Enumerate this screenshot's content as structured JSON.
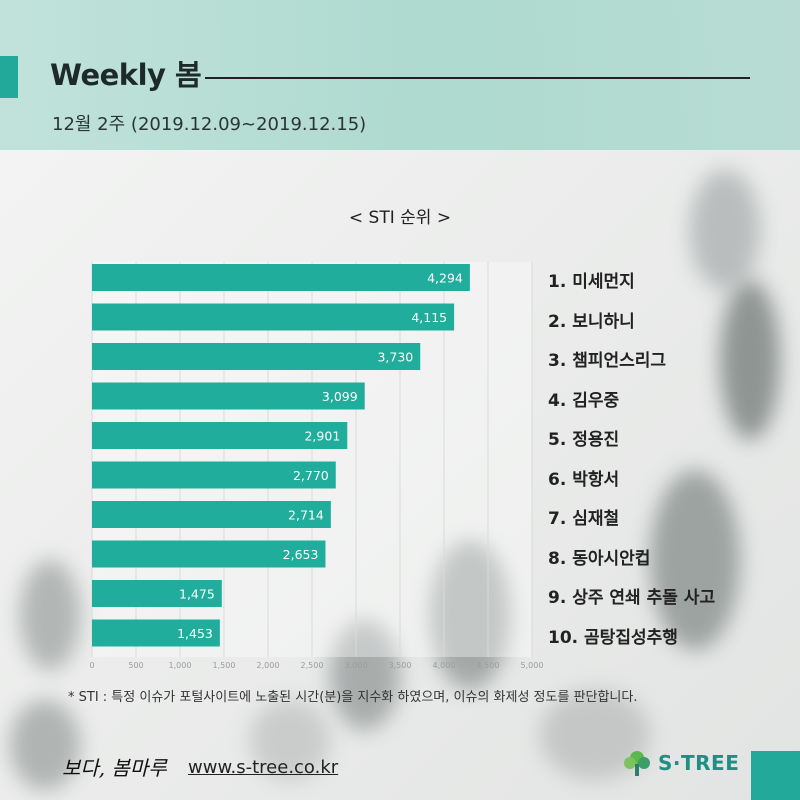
{
  "header": {
    "title": "Weekly 봄",
    "subtitle": "12월 2주 (2019.12.09~2019.12.15)"
  },
  "colors": {
    "accent": "#22a99a",
    "bar": "#20ad9c",
    "header_bg": "#b2dcd2"
  },
  "chart_data": {
    "type": "bar",
    "orientation": "horizontal",
    "title": "< STI 순위 >",
    "categories": [
      "1. 미세먼지",
      "2. 보니하니",
      "3. 챔피언스리그",
      "4. 김우중",
      "5. 정용진",
      "6. 박항서",
      "7. 심재철",
      "8. 동아시안컵",
      "9. 상주 연쇄 추돌 사고",
      "10. 곰탕집성추행"
    ],
    "values": [
      4294,
      4115,
      3730,
      3099,
      2901,
      2770,
      2714,
      2653,
      1475,
      1453
    ],
    "value_labels": [
      "4,294",
      "4,115",
      "3,730",
      "3,099",
      "2,901",
      "2,770",
      "2,714",
      "2,653",
      "1,475",
      "1,453"
    ],
    "xlim": [
      0,
      5000
    ],
    "x_ticks": [
      0,
      500,
      1000,
      1500,
      2000,
      2500,
      3000,
      3500,
      4000,
      4500,
      5000
    ],
    "x_tick_labels": [
      "0",
      "500",
      "1,000",
      "1,500",
      "2,000",
      "2,500",
      "3,000",
      "3,500",
      "4,000",
      "4,500",
      "5,000"
    ],
    "grid": true,
    "legend": "none"
  },
  "footer": {
    "footnote": "* STI : 특정 이슈가 포털사이트에 노출된 시간(분)을 지수화 하였으며, 이슈의 화제성 정도를 판단합니다.",
    "brand_handwriting": "보다, 봄마루",
    "website": "www.s-tree.co.kr",
    "logo_text": "S·TREE",
    "logo_icon": "tree-icon"
  }
}
